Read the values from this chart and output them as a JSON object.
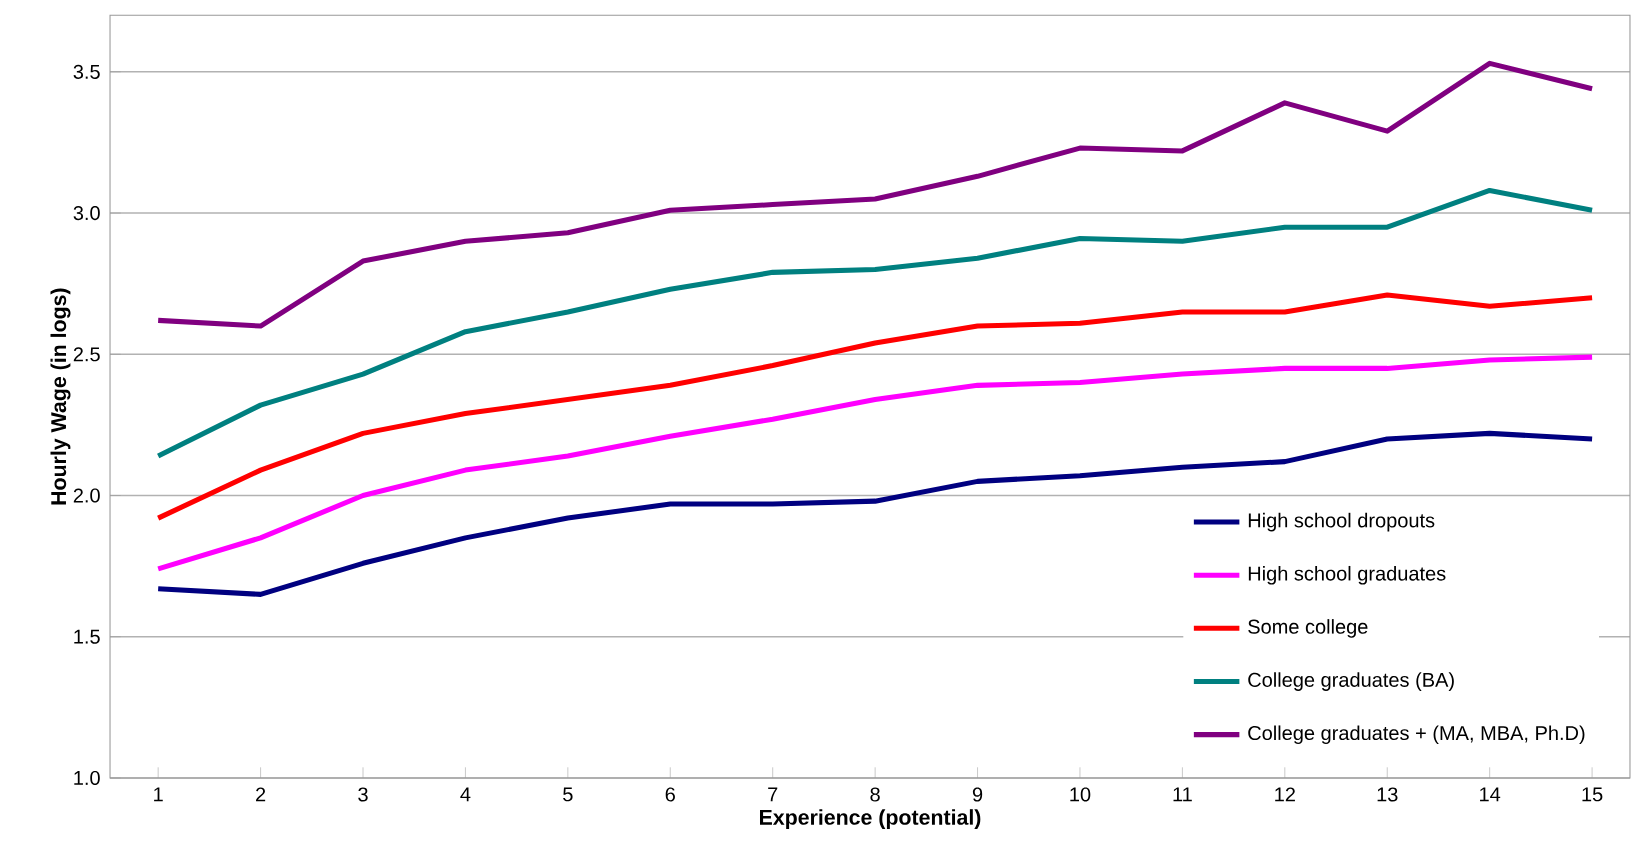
{
  "chart_data": {
    "type": "line",
    "xlabel": "Experience (potential)",
    "ylabel": "Hourly Wage (in logs)",
    "categories": [
      "1",
      "2",
      "3",
      "4",
      "5",
      "6",
      "7",
      "8",
      "9",
      "10",
      "11",
      "12",
      "13",
      "14",
      "15"
    ],
    "series": [
      {
        "name": "High school dropouts",
        "color": "#000080",
        "values": [
          1.67,
          1.65,
          1.76,
          1.85,
          1.92,
          1.97,
          1.97,
          1.98,
          2.05,
          2.07,
          2.1,
          2.12,
          2.2,
          2.22,
          2.2
        ]
      },
      {
        "name": "High school graduates",
        "color": "#ff00ff",
        "values": [
          1.74,
          1.85,
          2.0,
          2.09,
          2.14,
          2.21,
          2.27,
          2.34,
          2.39,
          2.4,
          2.43,
          2.45,
          2.45,
          2.48,
          2.49
        ]
      },
      {
        "name": "Some college",
        "color": "#ff0000",
        "values": [
          1.92,
          2.09,
          2.22,
          2.29,
          2.34,
          2.39,
          2.46,
          2.54,
          2.6,
          2.61,
          2.65,
          2.65,
          2.71,
          2.67,
          2.7
        ]
      },
      {
        "name": "College graduates (BA)",
        "color": "#008080",
        "values": [
          2.14,
          2.32,
          2.43,
          2.58,
          2.65,
          2.73,
          2.79,
          2.8,
          2.84,
          2.91,
          2.9,
          2.95,
          2.95,
          3.08,
          3.01
        ]
      },
      {
        "name": "College graduates + (MA, MBA, Ph.D)",
        "color": "#800080",
        "values": [
          2.62,
          2.6,
          2.83,
          2.9,
          2.93,
          3.01,
          3.03,
          3.05,
          3.13,
          3.23,
          3.22,
          3.39,
          3.29,
          3.53,
          3.44
        ]
      }
    ],
    "ylim": [
      1.0,
      3.7
    ],
    "yticks": [
      {
        "value": 1.0,
        "label": "1.0"
      },
      1.5,
      {
        "value": 2.0,
        "label": "2.0"
      },
      2.5,
      {
        "value": 3.0,
        "label": "3.0"
      },
      3.5
    ],
    "grid": "y",
    "legend": "bottom right",
    "line_style": "solid"
  }
}
